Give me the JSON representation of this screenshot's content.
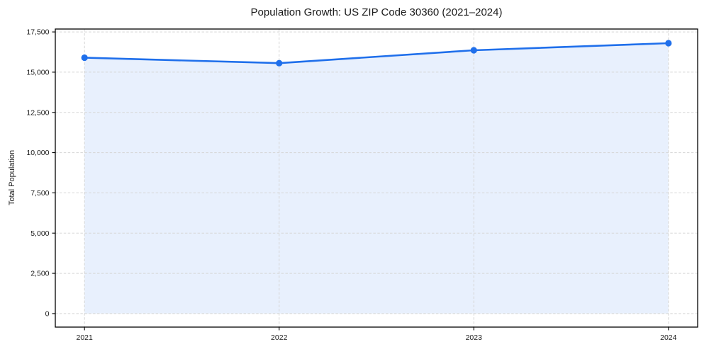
{
  "chart_data": {
    "type": "area",
    "title": "Population Growth: US ZIP Code 30360 (2021–2024)",
    "xlabel": "",
    "ylabel": "Total Population",
    "categories": [
      "2021",
      "2022",
      "2023",
      "2024"
    ],
    "x": [
      2021,
      2022,
      2023,
      2024
    ],
    "values": [
      15900,
      15560,
      16360,
      16800
    ],
    "series": [
      {
        "name": "Total Population",
        "values": [
          15900,
          15560,
          16360,
          16800
        ]
      }
    ],
    "y_ticks": [
      0,
      2500,
      5000,
      7500,
      10000,
      12500,
      15000,
      17500
    ],
    "y_tick_labels": [
      "0",
      "2,500",
      "5,000",
      "7,500",
      "10,000",
      "12,500",
      "15,000",
      "17,500"
    ],
    "xlim": [
      2020.85,
      2024.15
    ],
    "ylim": [
      -840,
      17680
    ],
    "grid": true,
    "grid_style": "dashed",
    "legend": "none",
    "marker": "circle",
    "colors": {
      "line": "#1f6feb",
      "marker": "#1f6feb",
      "fill": "rgba(31,111,235,0.10)",
      "grid": "#d5d5d5",
      "axis": "#000000",
      "text": "#1a1a1a"
    }
  }
}
